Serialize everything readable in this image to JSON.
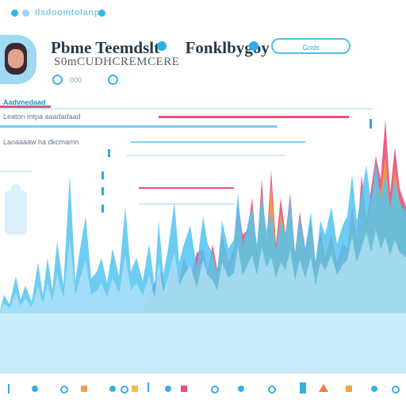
{
  "topbar": {
    "text": "Ilsdoomtolanp"
  },
  "profile": {
    "title": "Pbme Teemdslt",
    "title_suffix": "Fonklbygoy",
    "subtitle": "S0mCUDHCREMCERE",
    "meta": "000"
  },
  "header_button": {
    "label": "Gods"
  },
  "sections": {
    "heading": "Aadvnedaad",
    "line1": "Leaton mtpa aaadadaad",
    "line2": "Laoaaaaw ha  dkcmamn"
  },
  "colors": {
    "accent": "#35b6e8",
    "red": "#e9507a",
    "orange": "#f3a03c",
    "light_blue": "#b9e6fa"
  },
  "chart_data": {
    "type": "area",
    "series": [
      {
        "x": [
          0,
          5,
          12,
          20,
          26,
          32,
          40,
          48,
          54,
          60,
          66,
          72,
          80,
          88,
          95,
          100,
          108,
          115,
          122,
          128,
          135,
          142,
          150,
          158,
          165,
          172,
          180,
          188,
          195,
          200,
          206,
          212,
          220,
          226,
          232,
          240,
          248,
          256,
          262,
          268,
          274,
          280,
          288,
          295,
          300,
          306,
          312,
          318,
          324,
          330,
          336,
          342,
          348,
          354,
          360,
          366,
          372,
          378,
          385,
          392,
          398,
          404,
          410,
          418,
          425,
          432,
          438,
          444,
          450,
          456,
          462,
          468,
          474,
          480,
          486,
          492,
          498,
          504,
          512
        ],
        "y": [
          5,
          40,
          20,
          80,
          30,
          60,
          25,
          110,
          40,
          120,
          50,
          155,
          60,
          300,
          70,
          130,
          210,
          75,
          90,
          120,
          65,
          140,
          80,
          230,
          90,
          120,
          70,
          150,
          60,
          200,
          85,
          140,
          240,
          110,
          150,
          190,
          100,
          210,
          150,
          130,
          90,
          200,
          140,
          160,
          260,
          150,
          190,
          230,
          150,
          260,
          180,
          220,
          140,
          200,
          170,
          250,
          130,
          210,
          140,
          220,
          110,
          200,
          170,
          230,
          150,
          190,
          210,
          300,
          200,
          260,
          320,
          240,
          330,
          250,
          300,
          230,
          290,
          240,
          220
        ]
      },
      {
        "x": [
          180,
          190,
          196,
          204,
          210,
          218,
          226,
          232,
          240,
          248,
          256,
          262,
          268,
          274,
          280,
          288,
          295,
          300,
          306,
          312,
          318,
          324,
          330,
          336,
          342,
          348,
          354,
          360,
          366,
          372,
          378,
          385,
          392,
          398,
          404,
          410,
          418,
          425,
          432,
          438,
          444,
          450,
          456,
          462,
          468,
          474,
          480,
          486,
          492,
          498,
          504,
          512
        ],
        "y": [
          0,
          30,
          40,
          60,
          25,
          80,
          40,
          100,
          60,
          90,
          110,
          75,
          130,
          70,
          150,
          90,
          120,
          200,
          140,
          160,
          230,
          110,
          250,
          140,
          280,
          130,
          220,
          160,
          240,
          110,
          200,
          120,
          180,
          90,
          160,
          100,
          150,
          90,
          130,
          120,
          210,
          140,
          260,
          180,
          230,
          300,
          260,
          340,
          220,
          310,
          240,
          200
        ]
      },
      {
        "x": [
          180,
          190,
          196,
          204,
          210,
          218,
          226,
          232,
          240,
          248,
          256,
          262,
          268,
          274,
          280,
          288,
          295,
          300,
          306,
          312,
          318,
          324,
          330,
          336,
          342,
          348,
          354,
          360,
          366,
          372,
          378,
          385,
          392,
          398,
          404,
          410,
          418,
          425,
          432,
          438,
          444,
          450,
          456,
          462,
          468,
          474,
          480,
          486,
          492,
          498,
          504,
          512
        ],
        "y": [
          0,
          50,
          70,
          90,
          40,
          110,
          60,
          120,
          80,
          130,
          140,
          90,
          150,
          95,
          170,
          110,
          140,
          240,
          170,
          180,
          250,
          130,
          290,
          150,
          310,
          150,
          250,
          170,
          260,
          130,
          220,
          140,
          200,
          110,
          180,
          120,
          170,
          110,
          150,
          140,
          230,
          160,
          300,
          200,
          270,
          340,
          290,
          420,
          260,
          360,
          270,
          230
        ]
      }
    ],
    "ylim": [
      0,
      420
    ],
    "legend": "none",
    "grid": false
  }
}
